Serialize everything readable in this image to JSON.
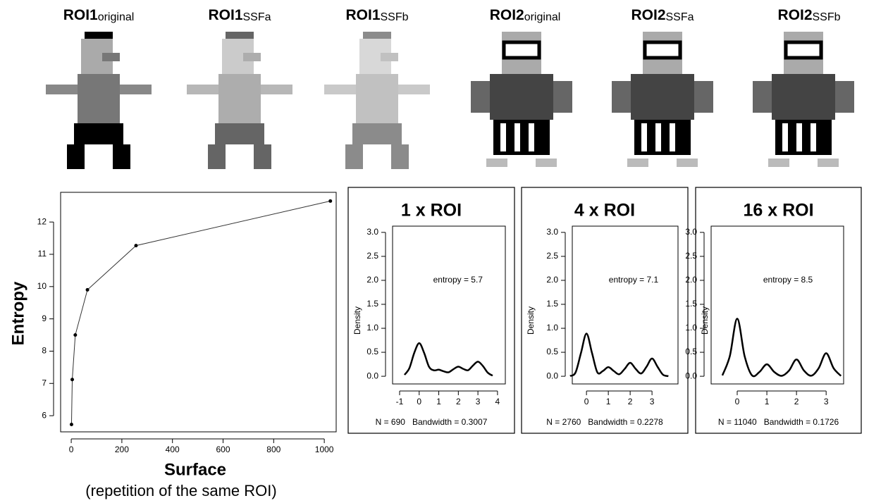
{
  "panels": [
    {
      "name": "ROI1",
      "sub": "original"
    },
    {
      "name": "ROI1",
      "sub": "SSFa"
    },
    {
      "name": "ROI1",
      "sub": "SSFb"
    },
    {
      "name": "ROI2",
      "sub": "original"
    },
    {
      "name": "ROI2",
      "sub": "SSFa"
    },
    {
      "name": "ROI2",
      "sub": "SSFb"
    }
  ],
  "chart_data": [
    {
      "type": "line",
      "xlabel": "Surface",
      "xlabel_note": "(repetition of the same ROI)",
      "ylabel": "Entropy",
      "x": [
        1,
        4,
        16,
        64,
        256,
        1024
      ],
      "values": [
        5.73,
        7.12,
        8.5,
        9.9,
        11.27,
        12.65
      ],
      "color": "#333333",
      "xlim": [
        -42,
        1047
      ],
      "ylim": [
        5.5,
        12.92
      ],
      "xticks": [
        0,
        200,
        400,
        600,
        800,
        1000
      ],
      "yticks": [
        6,
        7,
        8,
        9,
        10,
        11,
        12
      ]
    },
    {
      "type": "density",
      "title": "1 x ROI",
      "ylabel": "Density",
      "annotation": "entropy = 5.7",
      "note": "N = 690   Bandwidth = 0.3007",
      "color": "#000000",
      "x": [
        -0.75,
        -0.5,
        -0.25,
        0,
        0.25,
        0.5,
        0.75,
        1,
        1.25,
        1.5,
        1.75,
        2,
        2.25,
        2.5,
        2.75,
        3,
        3.25,
        3.5,
        3.75
      ],
      "values": [
        0.03,
        0.17,
        0.49,
        0.69,
        0.49,
        0.2,
        0.124,
        0.137,
        0.103,
        0.083,
        0.148,
        0.2,
        0.154,
        0.126,
        0.225,
        0.305,
        0.216,
        0.076,
        0.013
      ],
      "xlim": [
        -1.36,
        4.4
      ],
      "ylim": [
        -0.16,
        3.13
      ],
      "xticks": [
        -1,
        0,
        1,
        2,
        3,
        4
      ],
      "yticks": [
        {
          "value": 0,
          "label": "0.0"
        },
        {
          "value": 0.5,
          "label": "0.5"
        },
        {
          "value": 1,
          "label": "1.0"
        },
        {
          "value": 1.5,
          "label": "1.5"
        },
        {
          "value": 2,
          "label": "2.0"
        },
        {
          "value": 2.5,
          "label": "2.5"
        },
        {
          "value": 3,
          "label": "3.0"
        }
      ]
    },
    {
      "type": "density",
      "title": "4 x ROI",
      "ylabel": "Density",
      "annotation": "entropy = 7.1",
      "note": "N = 2760   Bandwidth = 0.2278",
      "color": "#000000",
      "x": [
        -0.75,
        -0.5,
        -0.25,
        0,
        0.25,
        0.5,
        0.75,
        1,
        1.25,
        1.5,
        1.75,
        2,
        2.25,
        2.5,
        2.75,
        3,
        3.25,
        3.5,
        3.75
      ],
      "values": [
        0.004,
        0.08,
        0.49,
        0.89,
        0.49,
        0.08,
        0.11,
        0.19,
        0.11,
        0.042,
        0.155,
        0.28,
        0.155,
        0.058,
        0.2,
        0.37,
        0.2,
        0.033,
        0.002
      ],
      "xlim": [
        -0.65,
        4.19
      ],
      "ylim": [
        -0.16,
        3.13
      ],
      "xticks": [
        0,
        1,
        2,
        3
      ],
      "yticks": [
        {
          "value": 0,
          "label": "0.0"
        },
        {
          "value": 0.5,
          "label": "0.5"
        },
        {
          "value": 1,
          "label": "1.0"
        },
        {
          "value": 1.5,
          "label": "1.5"
        },
        {
          "value": 2,
          "label": "2.0"
        },
        {
          "value": 2.5,
          "label": "2.5"
        },
        {
          "value": 3,
          "label": "3.0"
        }
      ]
    },
    {
      "type": "density",
      "title": "16 x ROI",
      "ylabel": "Density",
      "annotation": "entropy = 8.5",
      "note": "N = 11040   Bandwidth = 0.1726",
      "color": "#000000",
      "x": [
        -0.5,
        -0.25,
        0,
        0.25,
        0.5,
        0.75,
        1,
        1.25,
        1.5,
        1.75,
        2,
        2.25,
        2.5,
        2.75,
        3,
        3.25,
        3.5
      ],
      "values": [
        0.018,
        0.42,
        1.2,
        0.42,
        0.018,
        0.089,
        0.25,
        0.089,
        0.009,
        0.12,
        0.35,
        0.12,
        0.012,
        0.17,
        0.48,
        0.17,
        0.007
      ],
      "xlim": [
        -0.88,
        3.59
      ],
      "ylim": [
        -0.16,
        3.13
      ],
      "xticks": [
        0,
        1,
        2,
        3
      ],
      "yticks": [
        {
          "value": 0,
          "label": "0.0"
        },
        {
          "value": 0.5,
          "label": "0.5"
        },
        {
          "value": 1,
          "label": "1.0"
        },
        {
          "value": 1.5,
          "label": "1.5"
        },
        {
          "value": 2,
          "label": "2.0"
        },
        {
          "value": 2.5,
          "label": "2.5"
        },
        {
          "value": 3,
          "label": "3.0"
        }
      ]
    }
  ]
}
